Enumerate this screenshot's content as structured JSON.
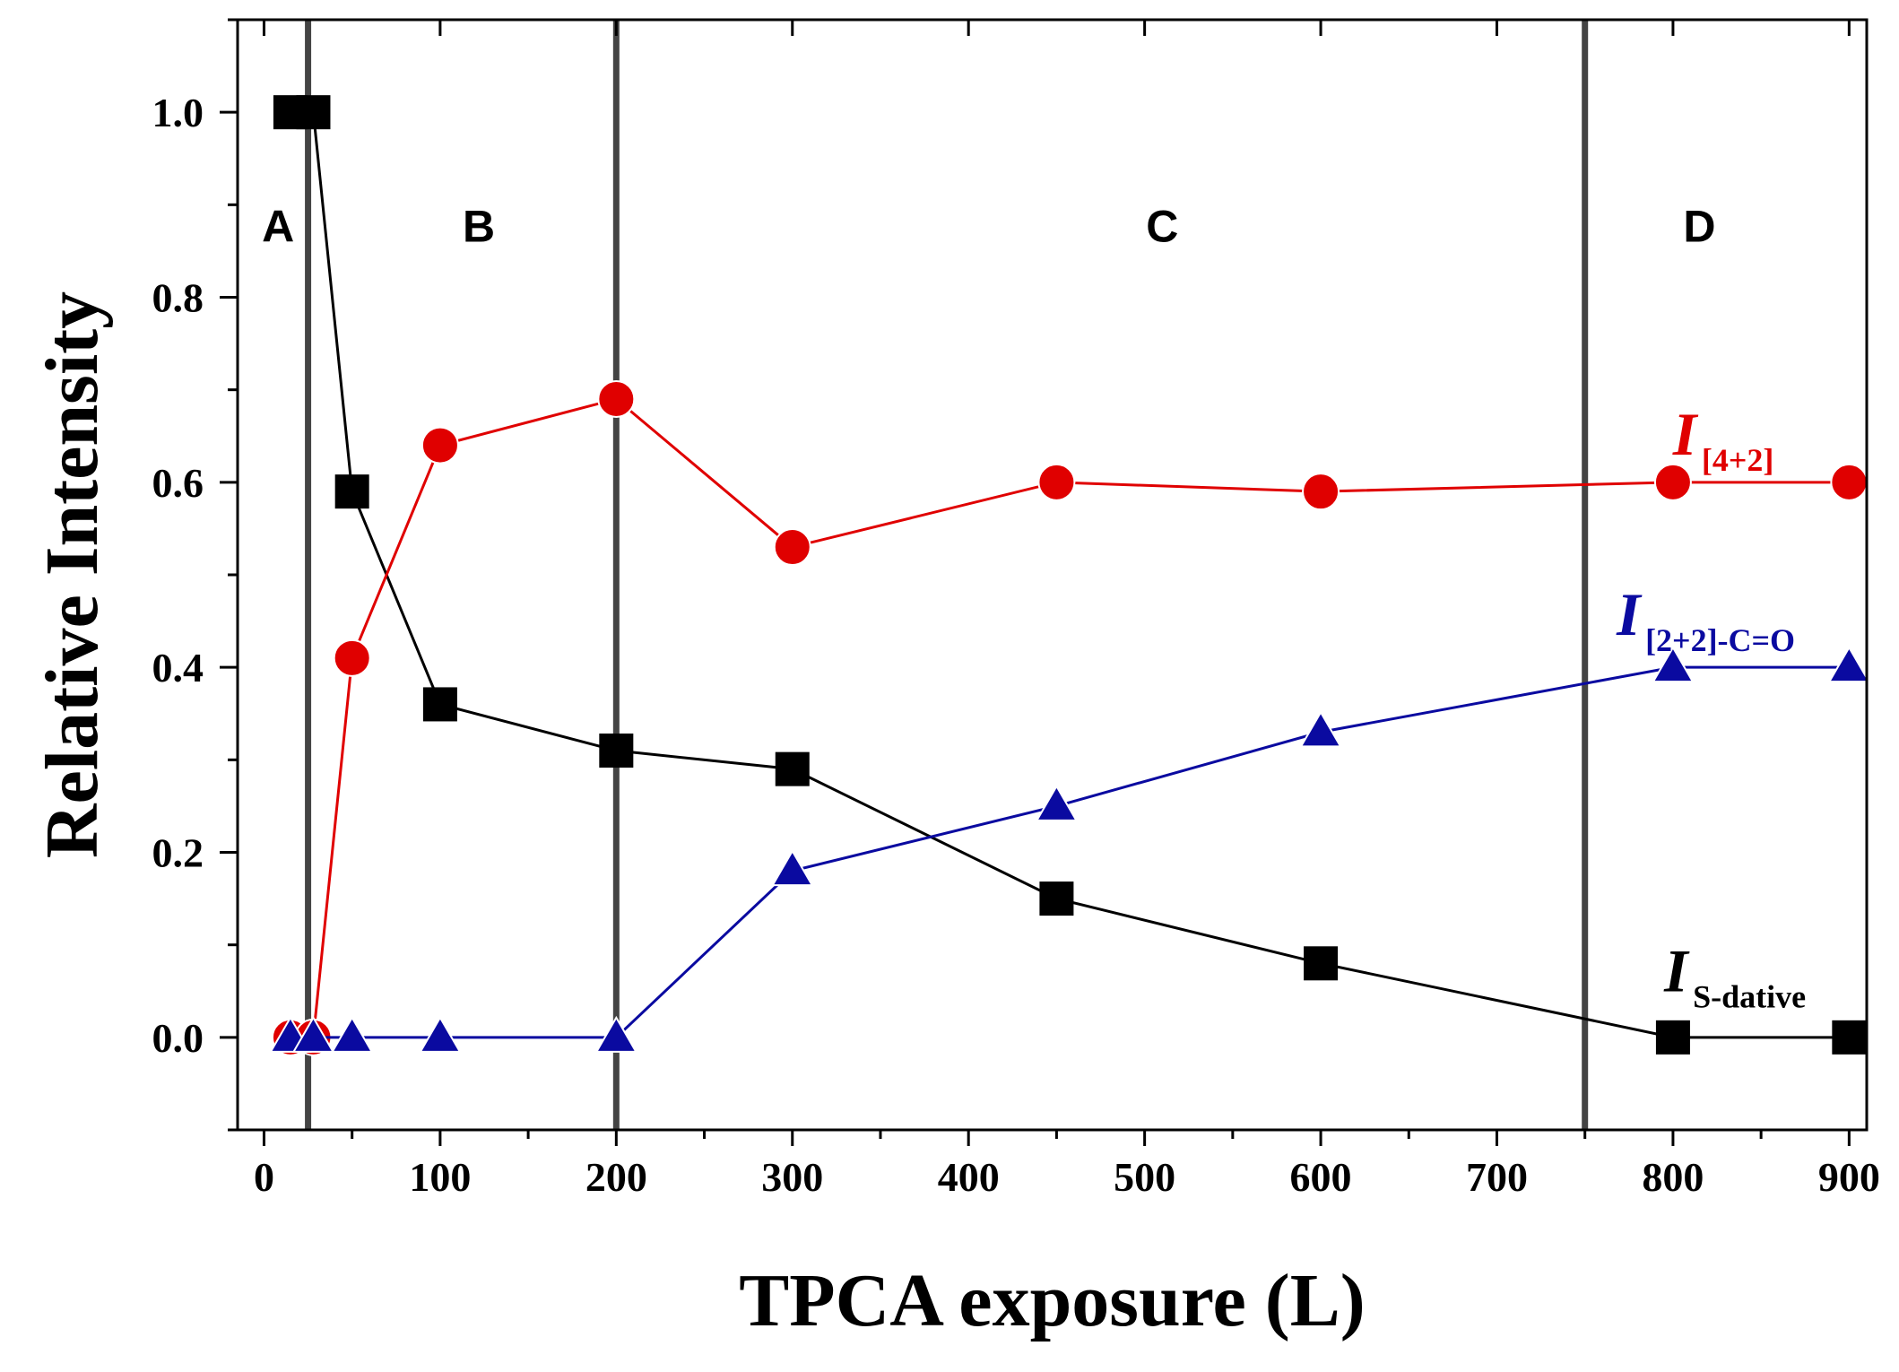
{
  "chart_data": {
    "type": "line",
    "title": "",
    "xlabel": "TPCA exposure (L)",
    "ylabel": "Relative Intensity",
    "xlim": [
      -15,
      910
    ],
    "ylim": [
      -0.1,
      1.1
    ],
    "xticks": [
      0,
      100,
      200,
      300,
      400,
      500,
      600,
      700,
      800,
      900
    ],
    "xtick_labels": [
      "0",
      "100",
      "200",
      "300",
      "400",
      "500",
      "600",
      "700",
      "800",
      "900"
    ],
    "yticks": [
      0.0,
      0.2,
      0.4,
      0.6,
      0.8,
      1.0
    ],
    "ytick_labels": [
      "0.0",
      "0.2",
      "0.4",
      "0.6",
      "0.8",
      "1.0"
    ],
    "region_boundaries": [
      25,
      200,
      750
    ],
    "regions": [
      {
        "label": "A",
        "x": 8,
        "y": 0.86
      },
      {
        "label": "B",
        "x": 122,
        "y": 0.86
      },
      {
        "label": "C",
        "x": 510,
        "y": 0.86
      },
      {
        "label": "D",
        "x": 815,
        "y": 0.86
      }
    ],
    "series": [
      {
        "name": "S-dative",
        "label_main": "I",
        "label_sub": "S-dative",
        "color": "#000000",
        "marker": "square",
        "x": [
          15,
          28,
          50,
          100,
          200,
          300,
          450,
          600,
          800,
          900
        ],
        "values": [
          1.0,
          1.0,
          0.59,
          0.36,
          0.31,
          0.29,
          0.15,
          0.08,
          0.0,
          0.0
        ],
        "label_anchor": {
          "x": 795,
          "y": 0.05
        }
      },
      {
        "name": "[4+2]",
        "label_main": "I",
        "label_sub": "[4+2]",
        "color": "#e00000",
        "marker": "circle",
        "x": [
          15,
          28,
          50,
          100,
          200,
          300,
          450,
          600,
          800,
          900
        ],
        "values": [
          0.0,
          0.0,
          0.41,
          0.64,
          0.69,
          0.53,
          0.6,
          0.59,
          0.6,
          0.6
        ],
        "label_anchor": {
          "x": 800,
          "y": 0.63
        }
      },
      {
        "name": "[2+2]-C=O",
        "label_main": "I",
        "label_sub": "[2+2]-C=O",
        "color": "#0a0aa0",
        "marker": "triangle",
        "x": [
          15,
          28,
          50,
          100,
          200,
          300,
          450,
          600,
          800,
          900
        ],
        "values": [
          0.0,
          0.0,
          0.0,
          0.0,
          0.0,
          0.18,
          0.25,
          0.33,
          0.4,
          0.4
        ],
        "label_anchor": {
          "x": 768,
          "y": 0.435
        }
      }
    ]
  }
}
